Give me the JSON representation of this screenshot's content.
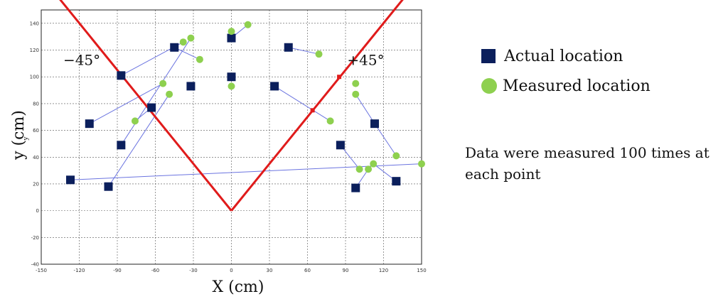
{
  "chart_data": {
    "type": "scatter",
    "xlabel": "X (cm)",
    "ylabel": "y (cm)",
    "ylabel_sub": "y",
    "xlim": [
      -150,
      150
    ],
    "ylim": [
      -40,
      150
    ],
    "x_ticks": [
      -150,
      -120,
      -90,
      -60,
      -30,
      0,
      30,
      60,
      90,
      120,
      150
    ],
    "y_ticks": [
      -40,
      -20,
      0,
      20,
      40,
      60,
      80,
      100,
      120,
      140
    ],
    "grid": true,
    "legend_position": "right",
    "series": [
      {
        "name": "Actual location",
        "marker": "square",
        "color": "#0b1f5c",
        "points": [
          [
            -127,
            23
          ],
          [
            -112,
            65
          ],
          [
            -97,
            18
          ],
          [
            -87,
            101
          ],
          [
            -87,
            49
          ],
          [
            -63,
            77
          ],
          [
            -45,
            122
          ],
          [
            -32,
            93
          ],
          [
            0,
            129
          ],
          [
            0,
            100
          ],
          [
            34,
            93
          ],
          [
            45,
            122
          ],
          [
            86,
            49
          ],
          [
            98,
            17
          ],
          [
            113,
            65
          ],
          [
            130,
            22
          ]
        ]
      },
      {
        "name": "Measured location",
        "marker": "circle",
        "color": "#8ed04f",
        "points": [
          [
            -76,
            67
          ],
          [
            -54,
            95
          ],
          [
            -49,
            87
          ],
          [
            -38,
            126
          ],
          [
            -32,
            129
          ],
          [
            -25,
            113
          ],
          [
            0,
            134
          ],
          [
            0,
            93
          ],
          [
            13,
            139
          ],
          [
            69,
            117
          ],
          [
            78,
            67
          ],
          [
            98,
            95
          ],
          [
            98,
            87
          ],
          [
            101,
            31
          ],
          [
            108,
            31
          ],
          [
            112,
            35
          ],
          [
            130,
            41
          ],
          [
            150,
            35
          ]
        ]
      }
    ],
    "connectors": [
      [
        [
          -127,
          23
        ],
        [
          150,
          35
        ]
      ],
      [
        [
          -112,
          65
        ],
        [
          -54,
          95
        ]
      ],
      [
        [
          -97,
          18
        ],
        [
          -49,
          87
        ]
      ],
      [
        [
          -87,
          101
        ],
        [
          -38,
          126
        ]
      ],
      [
        [
          -87,
          49
        ],
        [
          -32,
          129
        ]
      ],
      [
        [
          -63,
          77
        ],
        [
          -76,
          67
        ]
      ],
      [
        [
          -45,
          122
        ],
        [
          -25,
          113
        ]
      ],
      [
        [
          0,
          129
        ],
        [
          13,
          139
        ]
      ],
      [
        [
          34,
          93
        ],
        [
          78,
          67
        ]
      ],
      [
        [
          45,
          122
        ],
        [
          69,
          117
        ]
      ],
      [
        [
          86,
          49
        ],
        [
          101,
          31
        ]
      ],
      [
        [
          98,
          17
        ],
        [
          108,
          31
        ]
      ],
      [
        [
          113,
          65
        ],
        [
          130,
          41
        ]
      ],
      [
        [
          130,
          22
        ],
        [
          112,
          35
        ]
      ],
      [
        [
          113,
          65
        ],
        [
          98,
          87
        ]
      ]
    ],
    "v_lines": {
      "color": "#e01b1b",
      "apex": [
        0,
        0
      ],
      "ends": [
        [
          -137,
          160
        ],
        [
          137,
          160
        ]
      ],
      "labels": [
        {
          "text": "−45°",
          "at": [
            -118,
            109
          ]
        },
        {
          "text": "+45°",
          "at": [
            106,
            109
          ]
        }
      ],
      "markers": [
        [
          -63,
          76
        ],
        [
          64,
          75
        ],
        [
          85,
          100
        ]
      ]
    }
  },
  "legend": {
    "actual": "Actual location",
    "measured": "Measured location"
  },
  "note": "Data were measured 100 times at each point"
}
